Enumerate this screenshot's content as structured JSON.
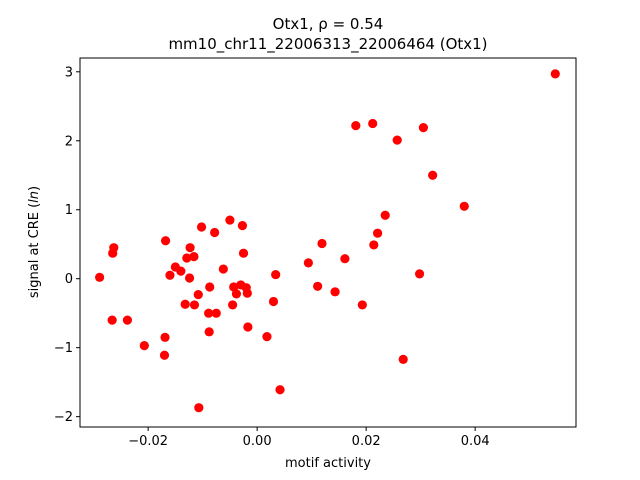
{
  "chart_data": {
    "type": "scatter",
    "title_line1": "Otx1, ρ = 0.54",
    "title_line2": "mm10_chr11_22006313_22006464 (Otx1)",
    "xlabel": "motif activity",
    "ylabel": "signal at CRE (ln)",
    "xlim": [
      -0.0325,
      0.0585
    ],
    "ylim": [
      -2.15,
      3.2
    ],
    "xticks": [
      -0.02,
      0.0,
      0.02,
      0.04
    ],
    "xtick_labels": [
      "−0.02",
      "0.00",
      "0.02",
      "0.04"
    ],
    "yticks": [
      -2,
      -1,
      0,
      1,
      2,
      3
    ],
    "ytick_labels": [
      "−2",
      "−1",
      "0",
      "1",
      "2",
      "3"
    ],
    "marker_color": "#ff0000",
    "grid": false,
    "points": [
      {
        "x": 0.0547,
        "y": 2.97
      },
      {
        "x": 0.038,
        "y": 1.05
      },
      {
        "x": 0.0322,
        "y": 1.5
      },
      {
        "x": 0.0305,
        "y": 2.19
      },
      {
        "x": 0.0298,
        "y": 0.07
      },
      {
        "x": 0.0268,
        "y": -1.17
      },
      {
        "x": 0.0257,
        "y": 2.01
      },
      {
        "x": 0.0235,
        "y": 0.92
      },
      {
        "x": 0.0221,
        "y": 0.66
      },
      {
        "x": 0.0214,
        "y": 0.49
      },
      {
        "x": 0.0212,
        "y": 2.25
      },
      {
        "x": 0.0193,
        "y": -0.38
      },
      {
        "x": 0.0181,
        "y": 2.22
      },
      {
        "x": 0.0161,
        "y": 0.29
      },
      {
        "x": 0.0143,
        "y": -0.19
      },
      {
        "x": 0.0119,
        "y": 0.51
      },
      {
        "x": 0.0111,
        "y": -0.11
      },
      {
        "x": 0.0094,
        "y": 0.23
      },
      {
        "x": 0.0042,
        "y": -1.61
      },
      {
        "x": 0.0034,
        "y": 0.06
      },
      {
        "x": 0.003,
        "y": -0.33
      },
      {
        "x": 0.0018,
        "y": -0.84
      },
      {
        "x": -0.0017,
        "y": -0.7
      },
      {
        "x": -0.0018,
        "y": -0.21
      },
      {
        "x": -0.002,
        "y": -0.13
      },
      {
        "x": -0.0025,
        "y": 0.37
      },
      {
        "x": -0.0027,
        "y": 0.77
      },
      {
        "x": -0.003,
        "y": -0.09
      },
      {
        "x": -0.0038,
        "y": -0.22
      },
      {
        "x": -0.0043,
        "y": -0.12
      },
      {
        "x": -0.0045,
        "y": -0.38
      },
      {
        "x": -0.005,
        "y": 0.85
      },
      {
        "x": -0.0062,
        "y": 0.14
      },
      {
        "x": -0.0075,
        "y": -0.5
      },
      {
        "x": -0.0078,
        "y": 0.67
      },
      {
        "x": -0.0087,
        "y": -0.12
      },
      {
        "x": -0.0088,
        "y": -0.77
      },
      {
        "x": -0.0089,
        "y": -0.5
      },
      {
        "x": -0.0102,
        "y": 0.75
      },
      {
        "x": -0.0107,
        "y": -1.87
      },
      {
        "x": -0.0108,
        "y": -0.23
      },
      {
        "x": -0.0115,
        "y": -0.38
      },
      {
        "x": -0.0116,
        "y": 0.32
      },
      {
        "x": -0.0123,
        "y": 0.45
      },
      {
        "x": -0.0124,
        "y": 0.01
      },
      {
        "x": -0.0129,
        "y": 0.3
      },
      {
        "x": -0.0132,
        "y": -0.37
      },
      {
        "x": -0.014,
        "y": 0.11
      },
      {
        "x": -0.015,
        "y": 0.17
      },
      {
        "x": -0.016,
        "y": 0.05
      },
      {
        "x": -0.0168,
        "y": 0.55
      },
      {
        "x": -0.0169,
        "y": -0.85
      },
      {
        "x": -0.017,
        "y": -1.11
      },
      {
        "x": -0.0207,
        "y": -0.97
      },
      {
        "x": -0.0238,
        "y": -0.6
      },
      {
        "x": -0.0263,
        "y": 0.45
      },
      {
        "x": -0.0265,
        "y": 0.37
      },
      {
        "x": -0.0266,
        "y": -0.6
      },
      {
        "x": -0.0289,
        "y": 0.02
      }
    ]
  }
}
